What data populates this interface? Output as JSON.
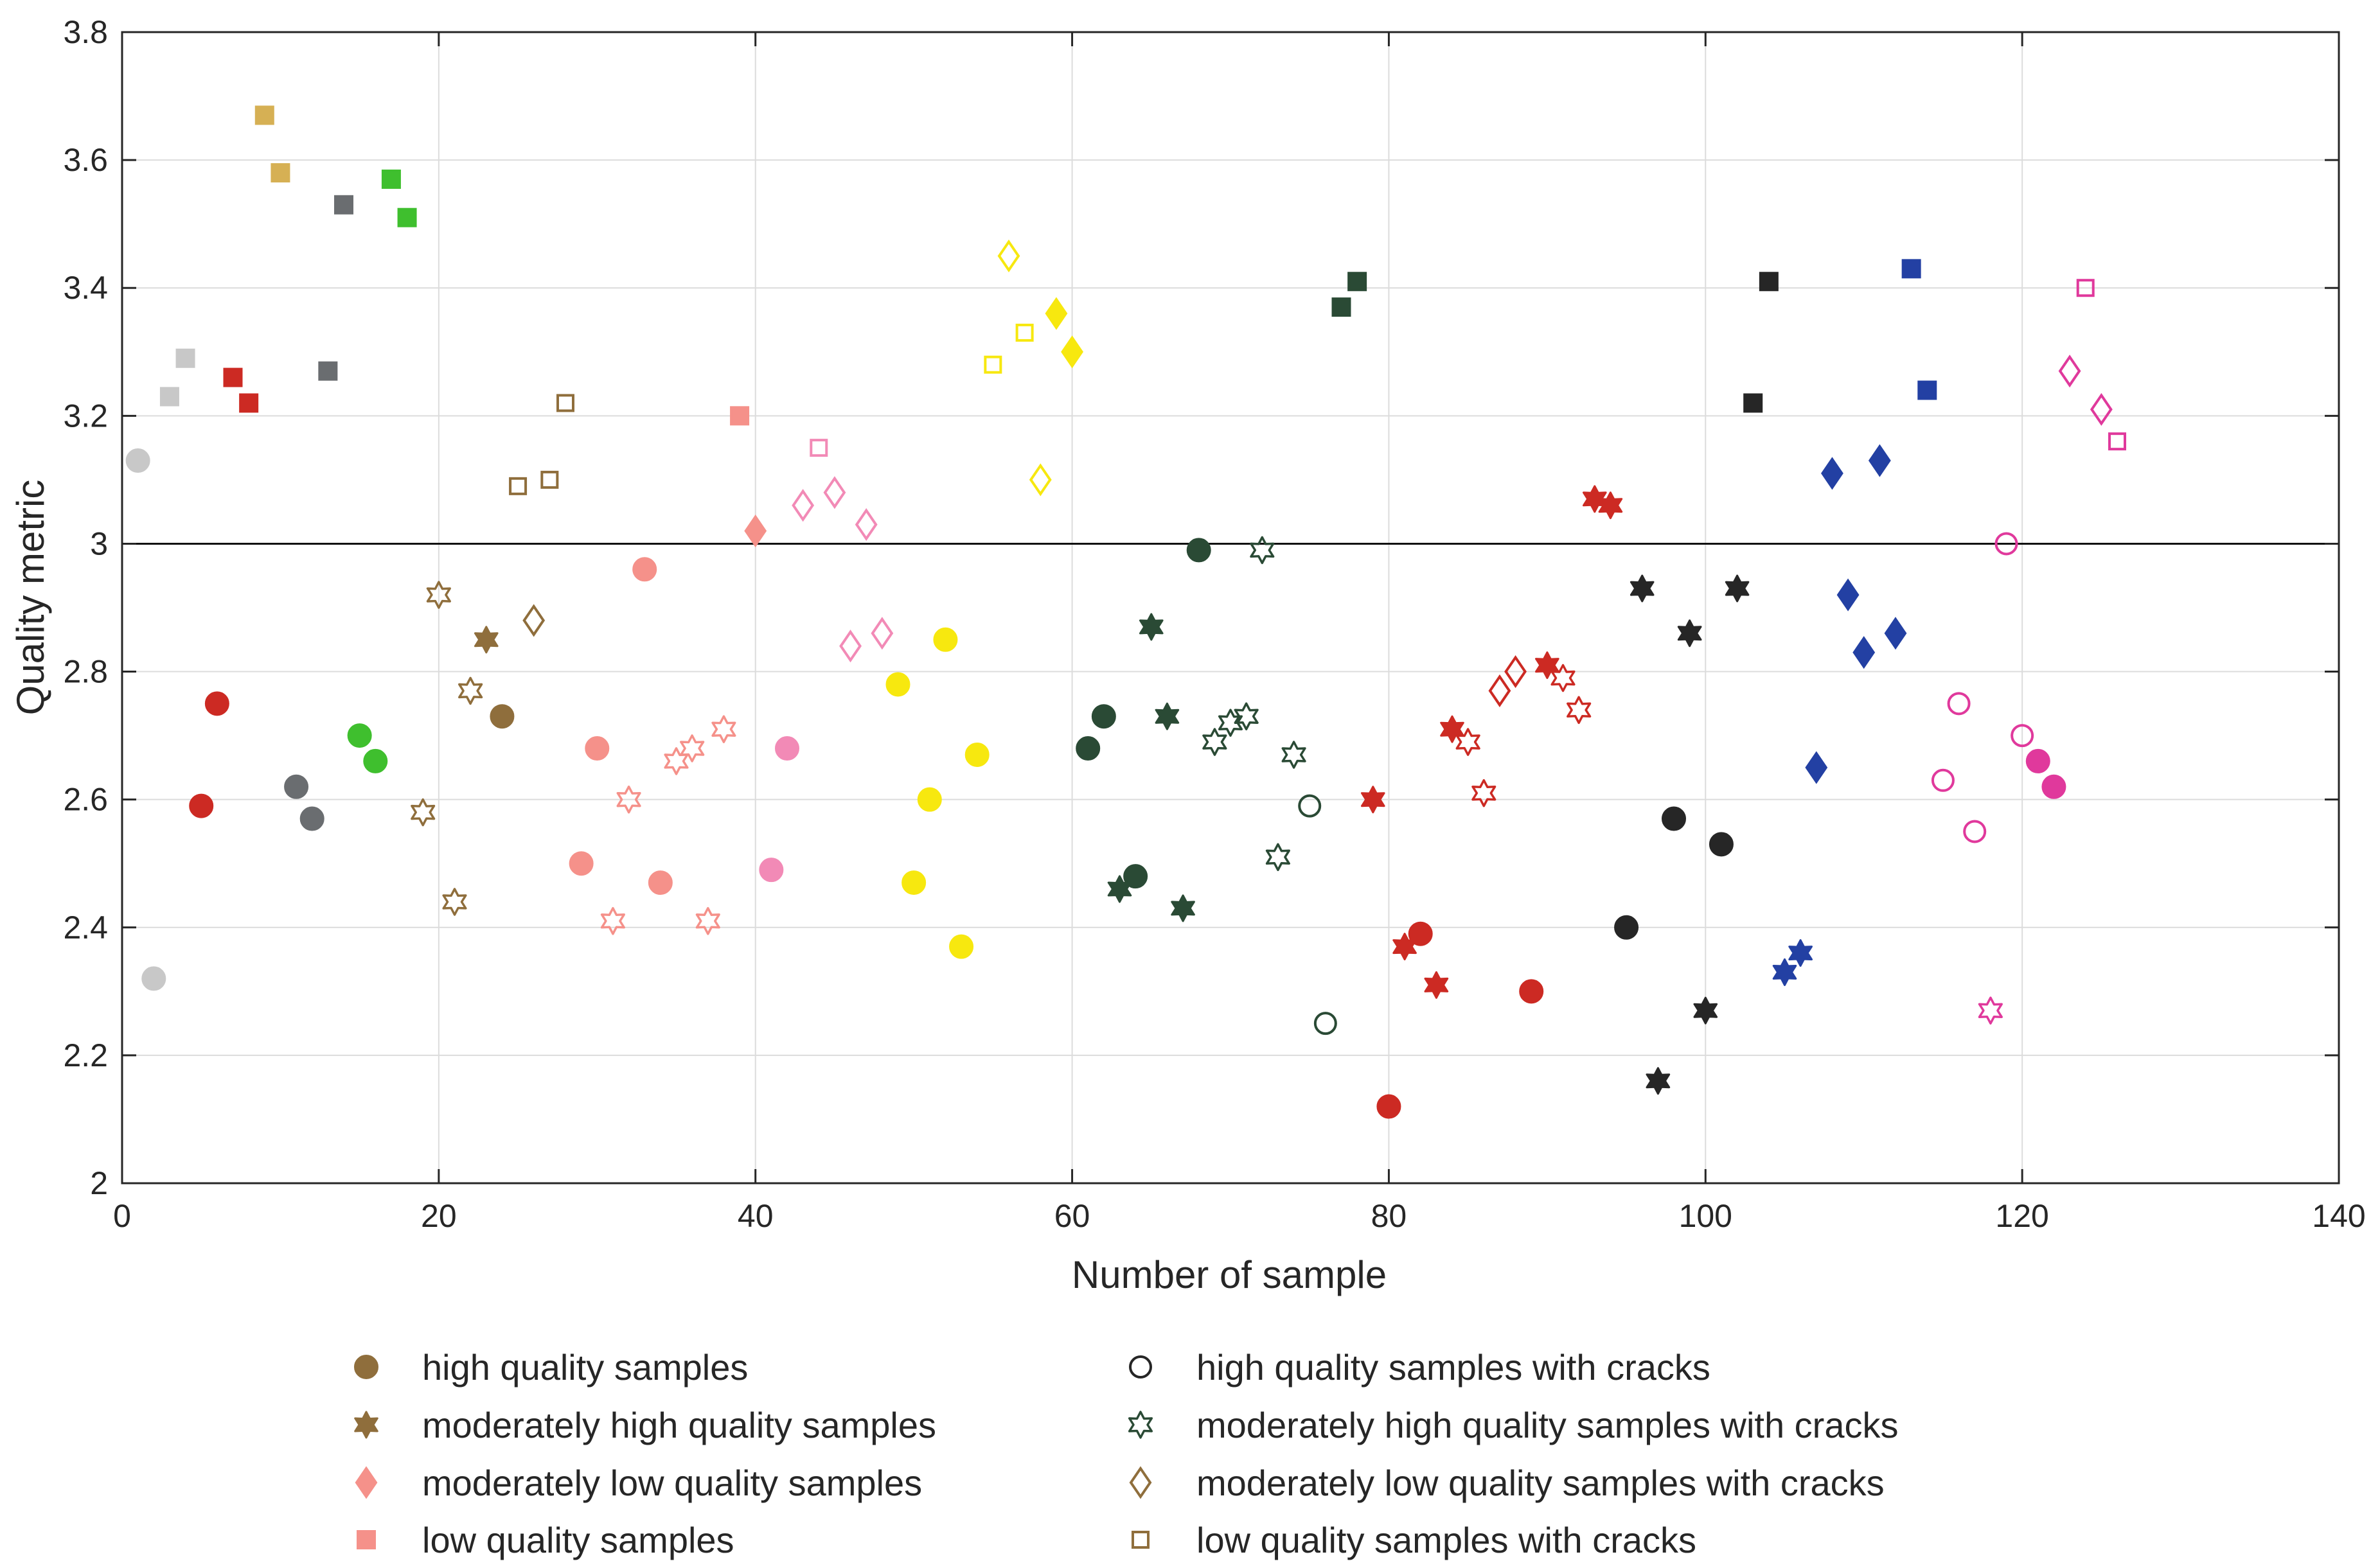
{
  "chart_data": {
    "type": "scatter",
    "xlabel": "Number of sample",
    "ylabel": "Quality metric",
    "xlim": [
      0,
      140
    ],
    "ylim": [
      2,
      3.8
    ],
    "xticks": [
      0,
      20,
      40,
      60,
      80,
      100,
      120,
      140
    ],
    "yticks": [
      2,
      2.2,
      2.4,
      2.6,
      2.8,
      3,
      3.2,
      3.4,
      3.6,
      3.8
    ],
    "xtick_labels": [
      "0",
      "20",
      "40",
      "60",
      "80",
      "100",
      "120",
      "140"
    ],
    "ytick_labels": [
      "2",
      "2.2",
      "2.4",
      "2.6",
      "2.8",
      "3",
      "3.2",
      "3.4",
      "3.6",
      "3.8"
    ],
    "grid": true,
    "threshold_line": 3.0,
    "legend_position": "bottom",
    "legend": [
      {
        "label": "high quality samples",
        "marker": "circle",
        "filled": true,
        "color": "#8f6e3c"
      },
      {
        "label": "moderately high quality samples",
        "marker": "star",
        "filled": true,
        "color": "#8f6e3c"
      },
      {
        "label": "moderately low quality samples",
        "marker": "diamond",
        "filled": true,
        "color": "#f5918a"
      },
      {
        "label": "low quality samples",
        "marker": "square",
        "filled": true,
        "color": "#f5918a"
      },
      {
        "label": "high quality samples with cracks",
        "marker": "circle",
        "filled": false,
        "color": "#262626"
      },
      {
        "label": "moderately high quality samples with cracks",
        "marker": "star",
        "filled": false,
        "color": "#2a4a35"
      },
      {
        "label": "moderately low quality samples with cracks",
        "marker": "diamond",
        "filled": false,
        "color": "#8f6e3c"
      },
      {
        "label": "low quality samples with cracks",
        "marker": "square",
        "filled": false,
        "color": "#8f6e3c"
      }
    ],
    "points": [
      {
        "x": 1,
        "y": 3.13,
        "marker": "circle",
        "filled": true,
        "color": "#c8c8c8"
      },
      {
        "x": 2,
        "y": 2.32,
        "marker": "circle",
        "filled": true,
        "color": "#c8c8c8"
      },
      {
        "x": 3,
        "y": 3.23,
        "marker": "square",
        "filled": true,
        "color": "#c8c8c8"
      },
      {
        "x": 4,
        "y": 3.29,
        "marker": "square",
        "filled": true,
        "color": "#c8c8c8"
      },
      {
        "x": 5,
        "y": 2.59,
        "marker": "circle",
        "filled": true,
        "color": "#cc2a23"
      },
      {
        "x": 6,
        "y": 2.75,
        "marker": "circle",
        "filled": true,
        "color": "#cc2a23"
      },
      {
        "x": 7,
        "y": 3.26,
        "marker": "square",
        "filled": true,
        "color": "#cc2a23"
      },
      {
        "x": 8,
        "y": 3.22,
        "marker": "square",
        "filled": true,
        "color": "#cc2a23"
      },
      {
        "x": 9,
        "y": 3.67,
        "marker": "square",
        "filled": true,
        "color": "#d6b054"
      },
      {
        "x": 10,
        "y": 3.58,
        "marker": "square",
        "filled": true,
        "color": "#d6b054"
      },
      {
        "x": 11,
        "y": 2.62,
        "marker": "circle",
        "filled": true,
        "color": "#6a6d70"
      },
      {
        "x": 12,
        "y": 2.57,
        "marker": "circle",
        "filled": true,
        "color": "#6a6d70"
      },
      {
        "x": 13,
        "y": 3.27,
        "marker": "square",
        "filled": true,
        "color": "#6a6d70"
      },
      {
        "x": 14,
        "y": 3.53,
        "marker": "square",
        "filled": true,
        "color": "#6a6d70"
      },
      {
        "x": 15,
        "y": 2.7,
        "marker": "circle",
        "filled": true,
        "color": "#3fbf2e"
      },
      {
        "x": 16,
        "y": 2.66,
        "marker": "circle",
        "filled": true,
        "color": "#3fbf2e"
      },
      {
        "x": 17,
        "y": 3.57,
        "marker": "square",
        "filled": true,
        "color": "#3fbf2e"
      },
      {
        "x": 18,
        "y": 3.51,
        "marker": "square",
        "filled": true,
        "color": "#3fbf2e"
      },
      {
        "x": 19,
        "y": 2.58,
        "marker": "star",
        "filled": false,
        "color": "#8f6e3c"
      },
      {
        "x": 20,
        "y": 2.92,
        "marker": "star",
        "filled": false,
        "color": "#8f6e3c"
      },
      {
        "x": 21,
        "y": 2.44,
        "marker": "star",
        "filled": false,
        "color": "#8f6e3c"
      },
      {
        "x": 22,
        "y": 2.77,
        "marker": "star",
        "filled": false,
        "color": "#8f6e3c"
      },
      {
        "x": 23,
        "y": 2.85,
        "marker": "star",
        "filled": true,
        "color": "#8f6e3c"
      },
      {
        "x": 24,
        "y": 2.73,
        "marker": "circle",
        "filled": true,
        "color": "#8f6e3c"
      },
      {
        "x": 25,
        "y": 3.09,
        "marker": "square",
        "filled": false,
        "color": "#8f6e3c"
      },
      {
        "x": 26,
        "y": 2.88,
        "marker": "diamond",
        "filled": false,
        "color": "#8f6e3c"
      },
      {
        "x": 27,
        "y": 3.1,
        "marker": "square",
        "filled": false,
        "color": "#8f6e3c"
      },
      {
        "x": 28,
        "y": 3.22,
        "marker": "square",
        "filled": false,
        "color": "#8f6e3c"
      },
      {
        "x": 29,
        "y": 2.5,
        "marker": "circle",
        "filled": true,
        "color": "#f5918a"
      },
      {
        "x": 30,
        "y": 2.68,
        "marker": "circle",
        "filled": true,
        "color": "#f5918a"
      },
      {
        "x": 31,
        "y": 2.41,
        "marker": "star",
        "filled": false,
        "color": "#f5918a"
      },
      {
        "x": 32,
        "y": 2.6,
        "marker": "star",
        "filled": false,
        "color": "#f5918a"
      },
      {
        "x": 33,
        "y": 2.96,
        "marker": "circle",
        "filled": true,
        "color": "#f5918a"
      },
      {
        "x": 34,
        "y": 2.47,
        "marker": "circle",
        "filled": true,
        "color": "#f5918a"
      },
      {
        "x": 35,
        "y": 2.66,
        "marker": "star",
        "filled": false,
        "color": "#f5918a"
      },
      {
        "x": 36,
        "y": 2.68,
        "marker": "star",
        "filled": false,
        "color": "#f5918a"
      },
      {
        "x": 37,
        "y": 2.41,
        "marker": "star",
        "filled": false,
        "color": "#f5918a"
      },
      {
        "x": 38,
        "y": 2.71,
        "marker": "star",
        "filled": false,
        "color": "#f5918a"
      },
      {
        "x": 39,
        "y": 3.2,
        "marker": "square",
        "filled": true,
        "color": "#f5918a"
      },
      {
        "x": 40,
        "y": 3.02,
        "marker": "diamond",
        "filled": true,
        "color": "#f5918a"
      },
      {
        "x": 41,
        "y": 2.49,
        "marker": "circle",
        "filled": true,
        "color": "#f28ab6"
      },
      {
        "x": 42,
        "y": 2.68,
        "marker": "circle",
        "filled": true,
        "color": "#f28ab6"
      },
      {
        "x": 43,
        "y": 3.06,
        "marker": "diamond",
        "filled": false,
        "color": "#f28ab6"
      },
      {
        "x": 44,
        "y": 3.15,
        "marker": "square",
        "filled": false,
        "color": "#f28ab6"
      },
      {
        "x": 45,
        "y": 3.08,
        "marker": "diamond",
        "filled": false,
        "color": "#f28ab6"
      },
      {
        "x": 46,
        "y": 2.84,
        "marker": "diamond",
        "filled": false,
        "color": "#f28ab6"
      },
      {
        "x": 47,
        "y": 3.03,
        "marker": "diamond",
        "filled": false,
        "color": "#f28ab6"
      },
      {
        "x": 48,
        "y": 2.86,
        "marker": "diamond",
        "filled": false,
        "color": "#f28ab6"
      },
      {
        "x": 49,
        "y": 2.78,
        "marker": "circle",
        "filled": true,
        "color": "#f7e80f"
      },
      {
        "x": 50,
        "y": 2.47,
        "marker": "circle",
        "filled": true,
        "color": "#f7e80f"
      },
      {
        "x": 51,
        "y": 2.6,
        "marker": "circle",
        "filled": true,
        "color": "#f7e80f"
      },
      {
        "x": 52,
        "y": 2.85,
        "marker": "circle",
        "filled": true,
        "color": "#f7e80f"
      },
      {
        "x": 53,
        "y": 2.37,
        "marker": "circle",
        "filled": true,
        "color": "#f7e80f"
      },
      {
        "x": 54,
        "y": 2.67,
        "marker": "circle",
        "filled": true,
        "color": "#f7e80f"
      },
      {
        "x": 55,
        "y": 3.28,
        "marker": "square",
        "filled": false,
        "color": "#f7e80f"
      },
      {
        "x": 56,
        "y": 3.45,
        "marker": "diamond",
        "filled": false,
        "color": "#f7e80f"
      },
      {
        "x": 57,
        "y": 3.33,
        "marker": "square",
        "filled": false,
        "color": "#f7e80f"
      },
      {
        "x": 58,
        "y": 3.1,
        "marker": "diamond",
        "filled": false,
        "color": "#f7e80f"
      },
      {
        "x": 59,
        "y": 3.36,
        "marker": "diamond",
        "filled": true,
        "color": "#f7e80f"
      },
      {
        "x": 60,
        "y": 3.3,
        "marker": "diamond",
        "filled": true,
        "color": "#f7e80f"
      },
      {
        "x": 61,
        "y": 2.68,
        "marker": "circle",
        "filled": true,
        "color": "#2a4a35"
      },
      {
        "x": 62,
        "y": 2.73,
        "marker": "circle",
        "filled": true,
        "color": "#2a4a35"
      },
      {
        "x": 63,
        "y": 2.46,
        "marker": "star",
        "filled": true,
        "color": "#2a4a35"
      },
      {
        "x": 64,
        "y": 2.48,
        "marker": "circle",
        "filled": true,
        "color": "#2a4a35"
      },
      {
        "x": 65,
        "y": 2.87,
        "marker": "star",
        "filled": true,
        "color": "#2a4a35"
      },
      {
        "x": 66,
        "y": 2.73,
        "marker": "star",
        "filled": true,
        "color": "#2a4a35"
      },
      {
        "x": 67,
        "y": 2.43,
        "marker": "star",
        "filled": true,
        "color": "#2a4a35"
      },
      {
        "x": 68,
        "y": 2.99,
        "marker": "circle",
        "filled": true,
        "color": "#2a4a35"
      },
      {
        "x": 69,
        "y": 2.69,
        "marker": "star",
        "filled": false,
        "color": "#2a4a35"
      },
      {
        "x": 70,
        "y": 2.72,
        "marker": "star",
        "filled": false,
        "color": "#2a4a35"
      },
      {
        "x": 71,
        "y": 2.73,
        "marker": "star",
        "filled": false,
        "color": "#2a4a35"
      },
      {
        "x": 72,
        "y": 2.99,
        "marker": "star",
        "filled": false,
        "color": "#2a4a35"
      },
      {
        "x": 73,
        "y": 2.51,
        "marker": "star",
        "filled": false,
        "color": "#2a4a35"
      },
      {
        "x": 74,
        "y": 2.67,
        "marker": "star",
        "filled": false,
        "color": "#2a4a35"
      },
      {
        "x": 75,
        "y": 2.59,
        "marker": "circle",
        "filled": false,
        "color": "#2a4a35"
      },
      {
        "x": 76,
        "y": 2.25,
        "marker": "circle",
        "filled": false,
        "color": "#2a4a35"
      },
      {
        "x": 77,
        "y": 3.37,
        "marker": "square",
        "filled": true,
        "color": "#2a4a35"
      },
      {
        "x": 78,
        "y": 3.41,
        "marker": "square",
        "filled": true,
        "color": "#2a4a35"
      },
      {
        "x": 79,
        "y": 2.6,
        "marker": "star",
        "filled": true,
        "color": "#cc2a23"
      },
      {
        "x": 80,
        "y": 2.12,
        "marker": "circle",
        "filled": true,
        "color": "#cc2a23"
      },
      {
        "x": 81,
        "y": 2.37,
        "marker": "star",
        "filled": true,
        "color": "#cc2a23"
      },
      {
        "x": 82,
        "y": 2.39,
        "marker": "circle",
        "filled": true,
        "color": "#cc2a23"
      },
      {
        "x": 83,
        "y": 2.31,
        "marker": "star",
        "filled": true,
        "color": "#cc2a23"
      },
      {
        "x": 84,
        "y": 2.71,
        "marker": "star",
        "filled": true,
        "color": "#cc2a23"
      },
      {
        "x": 85,
        "y": 2.69,
        "marker": "star",
        "filled": false,
        "color": "#cc2a23"
      },
      {
        "x": 86,
        "y": 2.61,
        "marker": "star",
        "filled": false,
        "color": "#cc2a23"
      },
      {
        "x": 87,
        "y": 2.77,
        "marker": "diamond",
        "filled": false,
        "color": "#cc2a23"
      },
      {
        "x": 88,
        "y": 2.8,
        "marker": "diamond",
        "filled": false,
        "color": "#cc2a23"
      },
      {
        "x": 89,
        "y": 2.3,
        "marker": "circle",
        "filled": true,
        "color": "#cc2a23"
      },
      {
        "x": 90,
        "y": 2.81,
        "marker": "star",
        "filled": true,
        "color": "#cc2a23"
      },
      {
        "x": 91,
        "y": 2.79,
        "marker": "star",
        "filled": false,
        "color": "#cc2a23"
      },
      {
        "x": 92,
        "y": 2.74,
        "marker": "star",
        "filled": false,
        "color": "#cc2a23"
      },
      {
        "x": 93,
        "y": 3.07,
        "marker": "star",
        "filled": true,
        "color": "#cc2a23"
      },
      {
        "x": 94,
        "y": 3.06,
        "marker": "star",
        "filled": true,
        "color": "#cc2a23"
      },
      {
        "x": 95,
        "y": 2.4,
        "marker": "circle",
        "filled": true,
        "color": "#262626"
      },
      {
        "x": 96,
        "y": 2.93,
        "marker": "star",
        "filled": true,
        "color": "#262626"
      },
      {
        "x": 97,
        "y": 2.16,
        "marker": "star",
        "filled": true,
        "color": "#262626"
      },
      {
        "x": 98,
        "y": 2.57,
        "marker": "circle",
        "filled": true,
        "color": "#262626"
      },
      {
        "x": 99,
        "y": 2.86,
        "marker": "star",
        "filled": true,
        "color": "#262626"
      },
      {
        "x": 100,
        "y": 2.27,
        "marker": "star",
        "filled": true,
        "color": "#262626"
      },
      {
        "x": 101,
        "y": 2.53,
        "marker": "circle",
        "filled": true,
        "color": "#262626"
      },
      {
        "x": 102,
        "y": 2.93,
        "marker": "star",
        "filled": true,
        "color": "#262626"
      },
      {
        "x": 103,
        "y": 3.22,
        "marker": "square",
        "filled": true,
        "color": "#262626"
      },
      {
        "x": 104,
        "y": 3.41,
        "marker": "square",
        "filled": true,
        "color": "#262626"
      },
      {
        "x": 105,
        "y": 2.33,
        "marker": "star",
        "filled": true,
        "color": "#2340a3"
      },
      {
        "x": 106,
        "y": 2.36,
        "marker": "star",
        "filled": true,
        "color": "#2340a3"
      },
      {
        "x": 107,
        "y": 2.65,
        "marker": "diamond",
        "filled": true,
        "color": "#2340a3"
      },
      {
        "x": 108,
        "y": 3.11,
        "marker": "diamond",
        "filled": true,
        "color": "#2340a3"
      },
      {
        "x": 109,
        "y": 2.92,
        "marker": "diamond",
        "filled": true,
        "color": "#2340a3"
      },
      {
        "x": 110,
        "y": 2.83,
        "marker": "diamond",
        "filled": true,
        "color": "#2340a3"
      },
      {
        "x": 111,
        "y": 3.13,
        "marker": "diamond",
        "filled": true,
        "color": "#2340a3"
      },
      {
        "x": 112,
        "y": 2.86,
        "marker": "diamond",
        "filled": true,
        "color": "#2340a3"
      },
      {
        "x": 113,
        "y": 3.43,
        "marker": "square",
        "filled": true,
        "color": "#2340a3"
      },
      {
        "x": 114,
        "y": 3.24,
        "marker": "square",
        "filled": true,
        "color": "#2340a3"
      },
      {
        "x": 115,
        "y": 2.63,
        "marker": "circle",
        "filled": false,
        "color": "#e0399c"
      },
      {
        "x": 116,
        "y": 2.75,
        "marker": "circle",
        "filled": false,
        "color": "#e0399c"
      },
      {
        "x": 117,
        "y": 2.55,
        "marker": "circle",
        "filled": false,
        "color": "#e0399c"
      },
      {
        "x": 118,
        "y": 2.27,
        "marker": "star",
        "filled": false,
        "color": "#e0399c"
      },
      {
        "x": 119,
        "y": 3.0,
        "marker": "circle",
        "filled": false,
        "color": "#e0399c"
      },
      {
        "x": 120,
        "y": 2.7,
        "marker": "circle",
        "filled": false,
        "color": "#e0399c"
      },
      {
        "x": 121,
        "y": 2.66,
        "marker": "circle",
        "filled": true,
        "color": "#e0399c"
      },
      {
        "x": 122,
        "y": 2.62,
        "marker": "circle",
        "filled": true,
        "color": "#e0399c"
      },
      {
        "x": 123,
        "y": 3.27,
        "marker": "diamond",
        "filled": false,
        "color": "#e0399c"
      },
      {
        "x": 124,
        "y": 3.4,
        "marker": "square",
        "filled": false,
        "color": "#e0399c"
      },
      {
        "x": 125,
        "y": 3.21,
        "marker": "diamond",
        "filled": false,
        "color": "#e0399c"
      },
      {
        "x": 126,
        "y": 3.16,
        "marker": "square",
        "filled": false,
        "color": "#e0399c"
      }
    ]
  }
}
